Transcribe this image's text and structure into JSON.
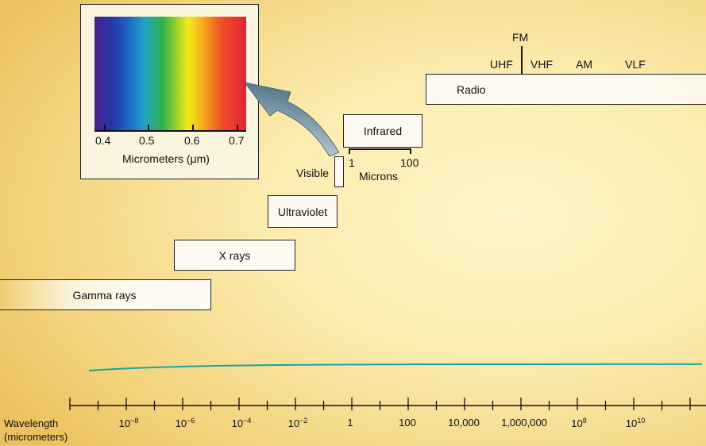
{
  "bands": {
    "gamma": "Gamma rays",
    "xray": "X rays",
    "uv": "Ultraviolet",
    "visible": "Visible",
    "ir": "Infrared",
    "radio": "Radio"
  },
  "radio_sub": {
    "fm": "FM",
    "uhf": "UHF",
    "vhf": "VHF",
    "am": "AM",
    "vlf": "VLF"
  },
  "infrared_scale": {
    "tick_1": "1",
    "tick_100": "100",
    "unit": "Microns"
  },
  "inset": {
    "ticks": [
      "0.4",
      "0.5",
      "0.6",
      "0.7"
    ],
    "label": "Micrometers (μm)",
    "spectrum_colors": [
      "#4a1f8a",
      "#2438a8",
      "#1d6fc9",
      "#22a3c4",
      "#2fb24a",
      "#9cd12a",
      "#f3ea1c",
      "#f6a51d",
      "#ef4f23",
      "#e3223a"
    ]
  },
  "axis": {
    "title_line1": "Wavelength",
    "title_line2": "(micrometers)",
    "labels": [
      {
        "base": "10",
        "exp": "−8"
      },
      {
        "base": "10",
        "exp": "−6"
      },
      {
        "base": "10",
        "exp": "−4"
      },
      {
        "base": "10",
        "exp": "−2"
      },
      {
        "base": "1",
        "exp": ""
      },
      {
        "base": "100",
        "exp": ""
      },
      {
        "base": "10,000",
        "exp": ""
      },
      {
        "base": "1,000,000",
        "exp": ""
      },
      {
        "base": "10",
        "exp": "8"
      },
      {
        "base": "10",
        "exp": "10"
      }
    ]
  },
  "colors": {
    "wave": "#1aa3a0",
    "arrow": "#6b8ea3",
    "line": "#111111"
  }
}
